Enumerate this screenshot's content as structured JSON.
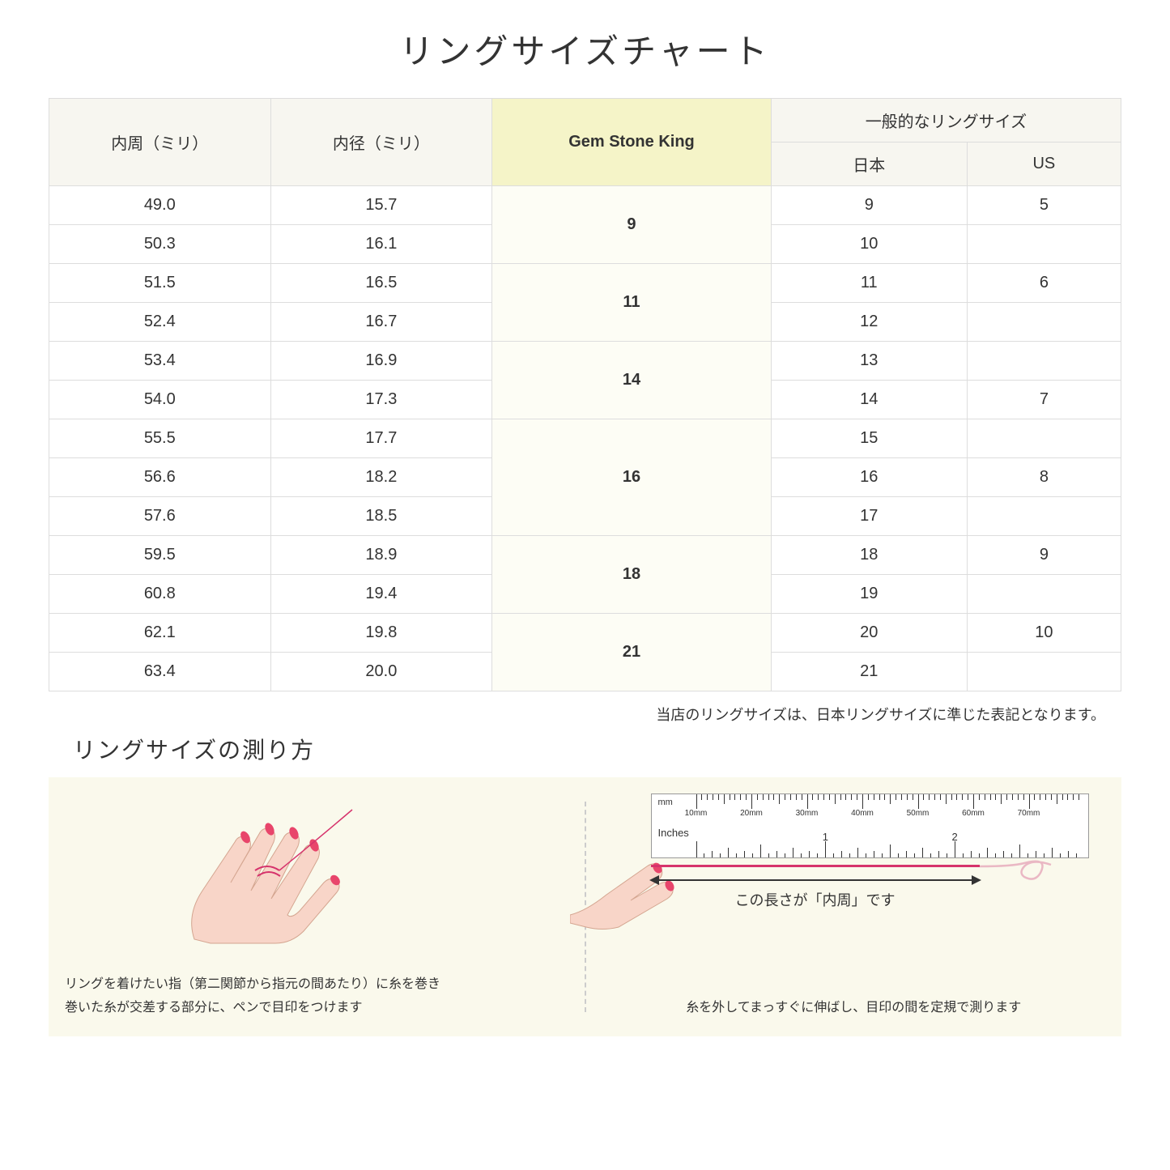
{
  "title": "リングサイズチャート",
  "table": {
    "headers": {
      "circumference": "内周（ミリ）",
      "diameter": "内径（ミリ）",
      "brand": "Gem Stone King",
      "general_group": "一般的なリングサイズ",
      "japan": "日本",
      "us": "US"
    },
    "groups": [
      {
        "brand": "9",
        "rows": [
          {
            "c": "49.0",
            "d": "15.7",
            "jp": "9",
            "us": "5"
          },
          {
            "c": "50.3",
            "d": "16.1",
            "jp": "10",
            "us": ""
          }
        ]
      },
      {
        "brand": "11",
        "rows": [
          {
            "c": "51.5",
            "d": "16.5",
            "jp": "11",
            "us": "6"
          },
          {
            "c": "52.4",
            "d": "16.7",
            "jp": "12",
            "us": ""
          }
        ]
      },
      {
        "brand": "14",
        "rows": [
          {
            "c": "53.4",
            "d": "16.9",
            "jp": "13",
            "us": ""
          },
          {
            "c": "54.0",
            "d": "17.3",
            "jp": "14",
            "us": "7"
          }
        ]
      },
      {
        "brand": "16",
        "rows": [
          {
            "c": "55.5",
            "d": "17.7",
            "jp": "15",
            "us": ""
          },
          {
            "c": "56.6",
            "d": "18.2",
            "jp": "16",
            "us": "8"
          },
          {
            "c": "57.6",
            "d": "18.5",
            "jp": "17",
            "us": ""
          }
        ]
      },
      {
        "brand": "18",
        "rows": [
          {
            "c": "59.5",
            "d": "18.9",
            "jp": "18",
            "us": "9"
          },
          {
            "c": "60.8",
            "d": "19.4",
            "jp": "19",
            "us": ""
          }
        ]
      },
      {
        "brand": "21",
        "rows": [
          {
            "c": "62.1",
            "d": "19.8",
            "jp": "20",
            "us": "10"
          },
          {
            "c": "63.4",
            "d": "20.0",
            "jp": "21",
            "us": ""
          }
        ]
      }
    ]
  },
  "note": "当店のリングサイズは、日本リングサイズに準じた表記となります。",
  "howto": {
    "title": "リングサイズの測り方",
    "left_caption": "リングを着けたい指（第二関節から指元の間あたり）に糸を巻き\n巻いた糸が交差する部分に、ペンで目印をつけます",
    "right_caption": "糸を外してまっすぐに伸ばし、目印の間を定規で測ります",
    "arrow_label": "この長さが「内周」です",
    "ruler": {
      "mm_label": "mm",
      "inches_label": "Inches",
      "mm_ticks": [
        "10mm",
        "20mm",
        "30mm",
        "40mm",
        "50mm",
        "60mm",
        "70mm"
      ],
      "inch_ticks": [
        "1",
        "2"
      ]
    }
  },
  "colors": {
    "header_bg": "#f7f6f0",
    "highlight_bg": "#f5f4c8",
    "highlight_cell_bg": "#fdfdf5",
    "howto_bg": "#faf9ec",
    "thread": "#d6336c",
    "skin": "#f8d5c8",
    "nail": "#e8456b"
  }
}
